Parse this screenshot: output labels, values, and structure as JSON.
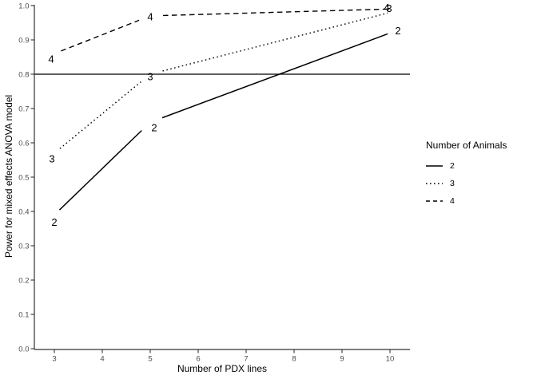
{
  "figure": {
    "background": "#ffffff",
    "axis_color": "#333333",
    "tick_label_color": "#4d4d4d",
    "data_color": "#000000"
  },
  "chart_data": {
    "type": "line",
    "title": "",
    "xlabel": "Number of PDX lines",
    "ylabel": "Power for mixed effects ANOVA model",
    "x": [
      3,
      5,
      10
    ],
    "x_ticks": [
      "3",
      "4",
      "5",
      "6",
      "7",
      "8",
      "9",
      "10"
    ],
    "y_ticks": [
      "0.0",
      "0.1",
      "0.2",
      "0.3",
      "0.4",
      "0.5",
      "0.6",
      "0.7",
      "0.8",
      "0.9",
      "1.0"
    ],
    "xlim": [
      2.58,
      10.42
    ],
    "ylim": [
      0.0,
      1.0
    ],
    "grid": "off",
    "reference_line": {
      "y": 0.8
    },
    "series": [
      {
        "name": "2",
        "style": "solid",
        "values": [
          0.39,
          0.66,
          0.92
        ],
        "point_label": "2"
      },
      {
        "name": "3",
        "style": "dotted",
        "values": [
          0.57,
          0.8,
          0.98
        ],
        "point_label": "3"
      },
      {
        "name": "4",
        "style": "dashed",
        "values": [
          0.86,
          0.97,
          0.99
        ],
        "point_label": "4"
      }
    ],
    "legend": {
      "title": "Number of Animals",
      "position": "right",
      "entries": [
        {
          "label": "2",
          "style": "solid"
        },
        {
          "label": "3",
          "style": "dotted"
        },
        {
          "label": "4",
          "style": "dashed"
        }
      ]
    }
  }
}
